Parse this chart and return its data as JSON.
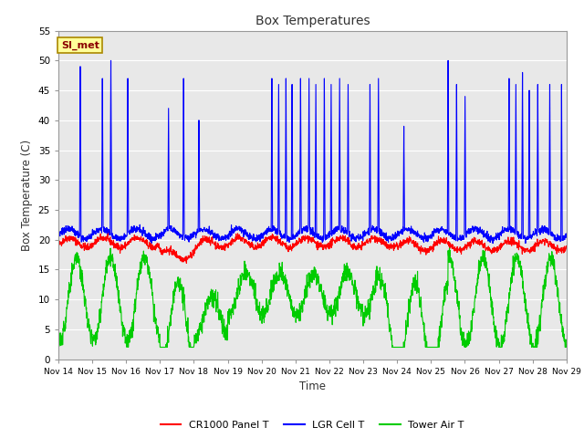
{
  "title": "Box Temperatures",
  "xlabel": "Time",
  "ylabel": "Box Temperature (C)",
  "ylim": [
    0,
    55
  ],
  "yticks": [
    0,
    5,
    10,
    15,
    20,
    25,
    30,
    35,
    40,
    45,
    50,
    55
  ],
  "x_tick_labels": [
    "Nov 14",
    "Nov 15",
    "Nov 16",
    "Nov 17",
    "Nov 18",
    "Nov 19",
    "Nov 20",
    "Nov 21",
    "Nov 22",
    "Nov 23",
    "Nov 24",
    "Nov 25",
    "Nov 26",
    "Nov 27",
    "Nov 28",
    "Nov 29"
  ],
  "legend_labels": [
    "CR1000 Panel T",
    "LGR Cell T",
    "Tower Air T"
  ],
  "legend_colors": [
    "#ff0000",
    "#0000ff",
    "#00cc00"
  ],
  "fig_bg_color": "#ffffff",
  "plot_bg_color": "#e8e8e8",
  "annotation_text": "SI_met",
  "annotation_bg": "#ffff99",
  "annotation_border": "#aa8800"
}
